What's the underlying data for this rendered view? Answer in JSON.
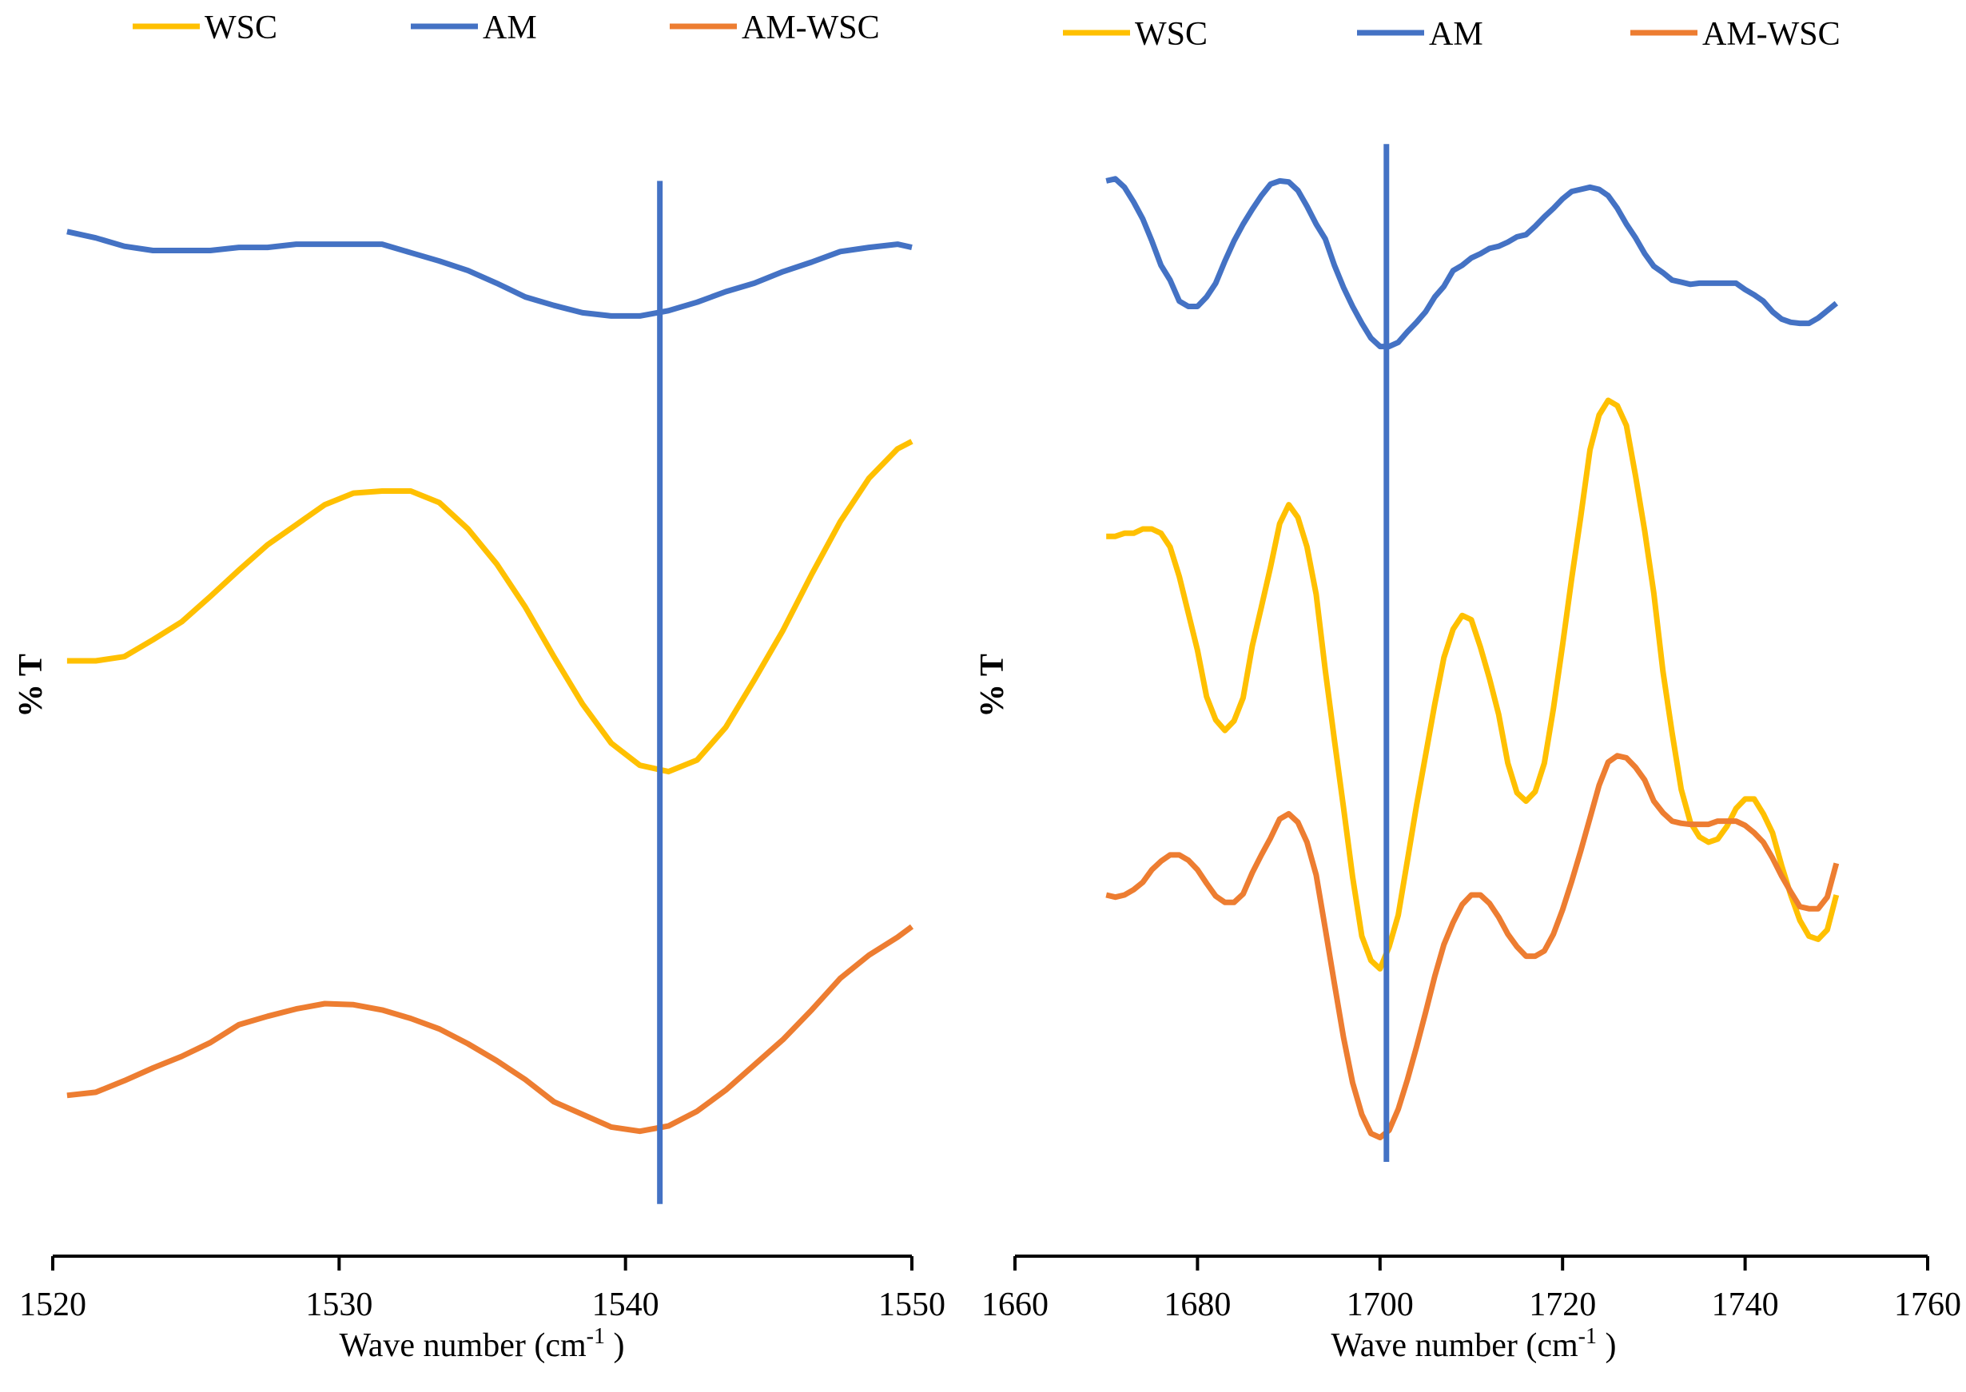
{
  "colors": {
    "WSC": "#ffc000",
    "AM": "#4472c4",
    "AM-WSC": "#ed7d31"
  },
  "chart_data": [
    {
      "type": "line",
      "xlabel": "Wave number (cm",
      "xlabel_sup": "-1",
      "xlabel_end": " )",
      "ylabel": "% T",
      "xlim": [
        1520,
        1550
      ],
      "ylim": [
        0,
        100
      ],
      "xticks": [
        1520,
        1530,
        1540,
        1550
      ],
      "xtick_labels": [
        "1520",
        "1530",
        "1540",
        "1550"
      ],
      "legend": [
        "WSC",
        "AM",
        "AM-WSC"
      ],
      "vline": 1541.2,
      "vline_range": [
        1,
        98
      ],
      "series": [
        {
          "name": "AM",
          "x": [
            1520.5,
            1521.5,
            1522.5,
            1523.5,
            1524.5,
            1525.5,
            1526.5,
            1527.5,
            1528.5,
            1529.5,
            1530.5,
            1531.5,
            1532.5,
            1533.5,
            1534.5,
            1535.5,
            1536.5,
            1537.5,
            1538.5,
            1539.5,
            1540.5,
            1541.5,
            1542.5,
            1543.5,
            1544.5,
            1545.5,
            1546.5,
            1547.5,
            1548.5,
            1549.5,
            1550
          ],
          "y": [
            93.2,
            92.6,
            91.8,
            91.4,
            91.4,
            91.4,
            91.7,
            91.7,
            92.0,
            92.0,
            92.0,
            92.0,
            91.2,
            90.4,
            89.5,
            88.3,
            87.0,
            86.2,
            85.5,
            85.2,
            85.2,
            85.7,
            86.5,
            87.5,
            88.3,
            89.4,
            90.3,
            91.3,
            91.7,
            92.0,
            91.7
          ]
        },
        {
          "name": "WSC",
          "x": [
            1520.5,
            1521.5,
            1522.5,
            1523.5,
            1524.5,
            1525.5,
            1526.5,
            1527.5,
            1528.5,
            1529.5,
            1530.5,
            1531.5,
            1532.5,
            1533.5,
            1534.5,
            1535.5,
            1536.5,
            1537.5,
            1538.5,
            1539.5,
            1540.5,
            1541.5,
            1542.5,
            1543.5,
            1544.5,
            1545.5,
            1546.5,
            1547.5,
            1548.5,
            1549.5,
            1550
          ],
          "y": [
            52.5,
            52.5,
            52.9,
            54.5,
            56.2,
            58.6,
            61.1,
            63.5,
            65.4,
            67.3,
            68.4,
            68.6,
            68.6,
            67.5,
            65.0,
            61.7,
            57.6,
            52.9,
            48.4,
            44.7,
            42.6,
            42.0,
            43.1,
            46.2,
            50.7,
            55.4,
            60.7,
            65.7,
            69.8,
            72.6,
            73.3
          ]
        },
        {
          "name": "AM-WSC",
          "x": [
            1520.5,
            1521.5,
            1522.5,
            1523.5,
            1524.5,
            1525.5,
            1526.5,
            1527.5,
            1528.5,
            1529.5,
            1530.5,
            1531.5,
            1532.5,
            1533.5,
            1534.5,
            1535.5,
            1536.5,
            1537.5,
            1538.5,
            1539.5,
            1540.5,
            1541.5,
            1542.5,
            1543.5,
            1544.5,
            1545.5,
            1546.5,
            1547.5,
            1548.5,
            1549.5,
            1550
          ],
          "y": [
            11.3,
            11.6,
            12.7,
            13.9,
            15.0,
            16.3,
            18.0,
            18.8,
            19.5,
            20.0,
            19.9,
            19.4,
            18.6,
            17.6,
            16.2,
            14.6,
            12.8,
            10.7,
            9.5,
            8.3,
            7.9,
            8.4,
            9.8,
            11.8,
            14.2,
            16.6,
            19.4,
            22.4,
            24.6,
            26.3,
            27.3
          ]
        }
      ]
    },
    {
      "type": "line",
      "xlabel": "Wave number (cm",
      "xlabel_sup": "-1",
      "xlabel_end": " )",
      "ylabel": "% T",
      "xlim": [
        1660,
        1760
      ],
      "ylim": [
        0,
        100
      ],
      "xticks": [
        1660,
        1680,
        1700,
        1720,
        1740,
        1760
      ],
      "xtick_labels": [
        "1660",
        "1680",
        "1700",
        "1720",
        "1740",
        "1760"
      ],
      "legend": [
        "WSC",
        "AM",
        "AM-WSC"
      ],
      "vline": 1700.7,
      "vline_range": [
        5,
        101.5
      ],
      "series": [
        {
          "name": "AM",
          "x": [
            1670,
            1671,
            1672,
            1673,
            1674,
            1675,
            1676,
            1677,
            1678,
            1679,
            1680,
            1681,
            1682,
            1683,
            1684,
            1685,
            1686,
            1687,
            1688,
            1689,
            1690,
            1691,
            1692,
            1693,
            1694,
            1695,
            1696,
            1697,
            1698,
            1699,
            1700,
            1701,
            1702,
            1703,
            1704,
            1705,
            1706,
            1707,
            1708,
            1709,
            1710,
            1711,
            1712,
            1713,
            1714,
            1715,
            1716,
            1717,
            1718,
            1719,
            1720,
            1721,
            1722,
            1723,
            1724,
            1725,
            1726,
            1727,
            1728,
            1729,
            1730,
            1731,
            1732,
            1733,
            1734,
            1735,
            1736,
            1737,
            1738,
            1739,
            1740,
            1741,
            1742,
            1743,
            1744,
            1745,
            1746,
            1747,
            1748,
            1749,
            1750
          ],
          "y": [
            98.0,
            98.2,
            97.4,
            96.0,
            94.4,
            92.3,
            90.0,
            88.6,
            86.6,
            86.1,
            86.1,
            87.0,
            88.3,
            90.4,
            92.3,
            93.9,
            95.3,
            96.6,
            97.7,
            98.0,
            97.9,
            97.1,
            95.6,
            93.9,
            92.5,
            90.0,
            87.9,
            86.1,
            84.5,
            83.1,
            82.3,
            82.3,
            82.7,
            83.7,
            84.6,
            85.6,
            87.0,
            88.0,
            89.5,
            90.0,
            90.7,
            91.1,
            91.6,
            91.8,
            92.2,
            92.7,
            92.9,
            93.7,
            94.6,
            95.4,
            96.3,
            97.0,
            97.2,
            97.4,
            97.2,
            96.6,
            95.4,
            93.9,
            92.6,
            91.1,
            89.9,
            89.3,
            88.6,
            88.4,
            88.2,
            88.3,
            88.3,
            88.3,
            88.3,
            88.3,
            87.7,
            87.2,
            86.6,
            85.6,
            84.9,
            84.6,
            84.5,
            84.5,
            85.0,
            85.7,
            86.4
          ]
        },
        {
          "name": "WSC",
          "x": [
            1670,
            1671,
            1672,
            1673,
            1674,
            1675,
            1676,
            1677,
            1678,
            1679,
            1680,
            1681,
            1682,
            1683,
            1684,
            1685,
            1686,
            1687,
            1688,
            1689,
            1690,
            1691,
            1692,
            1693,
            1694,
            1695,
            1696,
            1697,
            1698,
            1699,
            1700,
            1701,
            1702,
            1703,
            1704,
            1705,
            1706,
            1707,
            1708,
            1709,
            1710,
            1711,
            1712,
            1713,
            1714,
            1715,
            1716,
            1717,
            1718,
            1719,
            1720,
            1721,
            1722,
            1723,
            1724,
            1725,
            1726,
            1727,
            1728,
            1729,
            1730,
            1731,
            1732,
            1733,
            1734,
            1735,
            1736,
            1737,
            1738,
            1739,
            1740,
            1741,
            1742,
            1743,
            1744,
            1745,
            1746,
            1747,
            1748,
            1749,
            1750
          ],
          "y": [
            64.3,
            64.3,
            64.6,
            64.6,
            65.0,
            65.0,
            64.6,
            63.3,
            60.5,
            57.0,
            53.5,
            49.1,
            46.9,
            45.9,
            46.8,
            49.0,
            53.9,
            57.6,
            61.4,
            65.5,
            67.3,
            66.1,
            63.3,
            58.8,
            51.6,
            45.0,
            38.6,
            32.0,
            26.4,
            24.1,
            23.3,
            25.4,
            28.4,
            33.6,
            38.8,
            43.6,
            48.4,
            52.8,
            55.5,
            56.8,
            56.4,
            53.8,
            50.8,
            47.4,
            42.8,
            40.0,
            39.2,
            40.1,
            42.8,
            48.0,
            54.0,
            60.3,
            66.2,
            72.5,
            75.8,
            77.2,
            76.7,
            74.8,
            70.0,
            64.8,
            58.9,
            51.5,
            45.7,
            40.3,
            37.2,
            35.8,
            35.3,
            35.6,
            36.8,
            38.5,
            39.4,
            39.4,
            38.0,
            36.2,
            33.1,
            30.3,
            27.9,
            26.4,
            26.1,
            27.0,
            30.3
          ]
        },
        {
          "name": "AM-WSC",
          "x": [
            1670,
            1671,
            1672,
            1673,
            1674,
            1675,
            1676,
            1677,
            1678,
            1679,
            1680,
            1681,
            1682,
            1683,
            1684,
            1685,
            1686,
            1687,
            1688,
            1689,
            1690,
            1691,
            1692,
            1693,
            1694,
            1695,
            1696,
            1697,
            1698,
            1699,
            1700,
            1701,
            1702,
            1703,
            1704,
            1705,
            1706,
            1707,
            1708,
            1709,
            1710,
            1711,
            1712,
            1713,
            1714,
            1715,
            1716,
            1717,
            1718,
            1719,
            1720,
            1721,
            1722,
            1723,
            1724,
            1725,
            1726,
            1727,
            1728,
            1729,
            1730,
            1731,
            1732,
            1733,
            1734,
            1735,
            1736,
            1737,
            1738,
            1739,
            1740,
            1741,
            1742,
            1743,
            1744,
            1745,
            1746,
            1747,
            1748,
            1749,
            1750
          ],
          "y": [
            30.3,
            30.1,
            30.3,
            30.8,
            31.5,
            32.7,
            33.5,
            34.1,
            34.1,
            33.6,
            32.7,
            31.4,
            30.2,
            29.6,
            29.6,
            30.4,
            32.4,
            34.1,
            35.7,
            37.5,
            38.0,
            37.2,
            35.3,
            32.2,
            27.1,
            21.9,
            16.8,
            12.5,
            9.5,
            7.7,
            7.3,
            8.0,
            10.0,
            12.8,
            15.9,
            19.2,
            22.6,
            25.6,
            27.7,
            29.4,
            30.3,
            30.3,
            29.5,
            28.2,
            26.6,
            25.4,
            24.5,
            24.5,
            25.0,
            26.6,
            28.9,
            31.6,
            34.5,
            37.6,
            40.7,
            42.9,
            43.5,
            43.3,
            42.4,
            41.2,
            39.2,
            38.1,
            37.3,
            37.1,
            37.0,
            37.0,
            37.0,
            37.3,
            37.3,
            37.3,
            36.9,
            36.2,
            35.3,
            33.8,
            32.1,
            30.6,
            29.2,
            29.0,
            29.0,
            30.1,
            33.3
          ]
        }
      ]
    }
  ]
}
